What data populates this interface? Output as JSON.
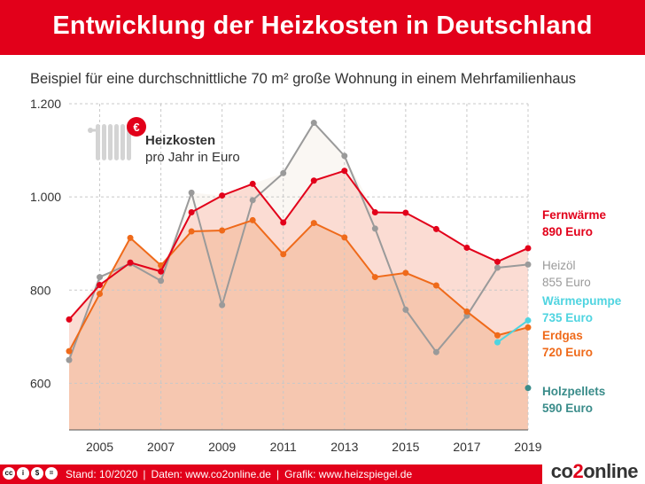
{
  "header": {
    "title": "Entwicklung der Heizkosten in Deutschland"
  },
  "subtitle": "Beispiel für eine durchschnittliche 70 m² große Wohnung in einem Mehrfamilienhaus",
  "footer": {
    "stand": "Stand: 10/2020",
    "daten": "Daten: www.co2online.de",
    "grafik": "Grafik: www.heizspiegel.de",
    "separator": "|",
    "logo_a": "co",
    "logo_b": "2",
    "logo_c": "online",
    "license_icons": [
      "cc-icon",
      "by-icon",
      "nc-icon",
      "nd-icon"
    ]
  },
  "colors": {
    "fernwaerme": "#e2001a",
    "heizoel": "#9a9a9a",
    "erdgas": "#ef6a1a",
    "waermepumpe": "#4fd4e0",
    "holzpellets": "#3a8c8a",
    "brand": "#e2001a"
  },
  "chart_data": {
    "type": "line",
    "title": "Heizkosten",
    "subtitle": "pro Jahr in Euro",
    "icon": "radiator-euro-icon",
    "xlim": [
      2004,
      2019
    ],
    "ylim": [
      500,
      1200
    ],
    "yticks": [
      600,
      800,
      1000,
      1200
    ],
    "ytick_labels": [
      "600",
      "800",
      "1.000",
      "1.200"
    ],
    "xticks": [
      2005,
      2007,
      2009,
      2011,
      2013,
      2015,
      2017,
      2019
    ],
    "grid": true,
    "series": [
      {
        "key": "fernwaerme",
        "name": "Fernwärme",
        "value_label": "890 Euro",
        "x": [
          2004,
          2005,
          2006,
          2007,
          2008,
          2009,
          2010,
          2011,
          2012,
          2013,
          2014,
          2015,
          2016,
          2017,
          2018,
          2019
        ],
        "values": [
          737,
          811,
          859,
          840,
          967,
          1003,
          1028,
          945,
          1035,
          1056,
          967,
          966,
          931,
          891,
          861,
          890
        ]
      },
      {
        "key": "heizoel",
        "name": "Heizöl",
        "value_label": "855 Euro",
        "x": [
          2004,
          2005,
          2006,
          2007,
          2008,
          2009,
          2010,
          2011,
          2012,
          2013,
          2014,
          2015,
          2016,
          2017,
          2018,
          2019
        ],
        "values": [
          650,
          828,
          857,
          820,
          1009,
          768,
          993,
          1051,
          1159,
          1088,
          932,
          758,
          667,
          745,
          848,
          855
        ]
      },
      {
        "key": "erdgas",
        "name": "Erdgas",
        "value_label": "720 Euro",
        "x": [
          2004,
          2005,
          2006,
          2007,
          2008,
          2009,
          2010,
          2011,
          2012,
          2013,
          2014,
          2015,
          2016,
          2017,
          2018,
          2019
        ],
        "values": [
          669,
          792,
          912,
          853,
          926,
          928,
          950,
          877,
          944,
          913,
          828,
          837,
          810,
          754,
          703,
          720
        ]
      },
      {
        "key": "waermepumpe",
        "name": "Wärmepumpe",
        "value_label": "735 Euro",
        "x": [
          2018,
          2019
        ],
        "values": [
          688,
          735
        ]
      },
      {
        "key": "holzpellets",
        "name": "Holzpellets",
        "value_label": "590 Euro",
        "x": [
          2019
        ],
        "values": [
          590
        ]
      }
    ]
  }
}
